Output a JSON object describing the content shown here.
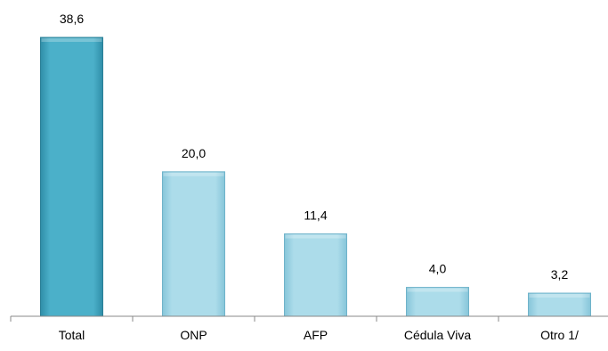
{
  "chart_data": {
    "type": "bar",
    "title": "",
    "xlabel": "",
    "ylabel": "",
    "categories": [
      "Total",
      "ONP",
      "AFP",
      "Cédula Viva",
      "Otro 1/"
    ],
    "values": [
      38.6,
      20.0,
      11.4,
      4.0,
      3.2
    ],
    "value_labels": [
      "38,6",
      "20,0",
      "11,4",
      "4,0",
      "3,2"
    ],
    "ylim": [
      0,
      38.6
    ],
    "grid": false,
    "legend": "none",
    "colors": {
      "first_bar": "#3f9fb8",
      "first_bar_edge": "#2a7f96",
      "other_bars": "#9fd5e6",
      "other_bars_edge": "#6fb3ca",
      "axis": "#888888"
    }
  }
}
